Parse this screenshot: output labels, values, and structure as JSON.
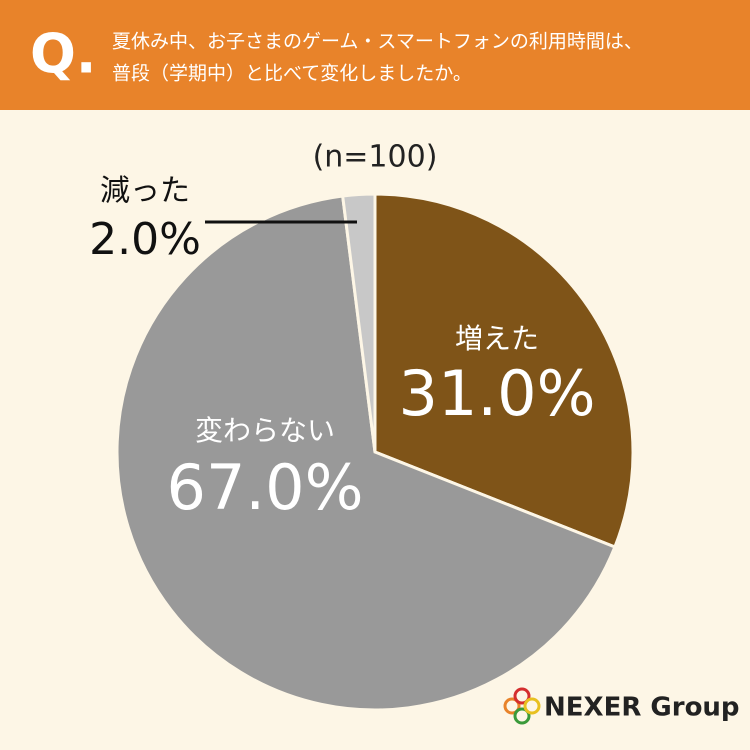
{
  "chart_data": {
    "type": "pie",
    "question_mark": "Q.",
    "title": [
      "夏休み中、お子さまのゲーム・スマートフォンの利用時間は、",
      "普段（学期中）と比べて変化しましたか。"
    ],
    "subtitle": "(n=100)",
    "categories": [
      "増えた",
      "変わらない",
      "減った"
    ],
    "values": [
      31.0,
      67.0,
      2.0
    ],
    "value_labels": [
      "31.0%",
      "67.0%",
      "2.0%"
    ],
    "colors": [
      "#7f5418",
      "#999999",
      "#c8c8c8"
    ],
    "logo": "NEXER Group"
  }
}
